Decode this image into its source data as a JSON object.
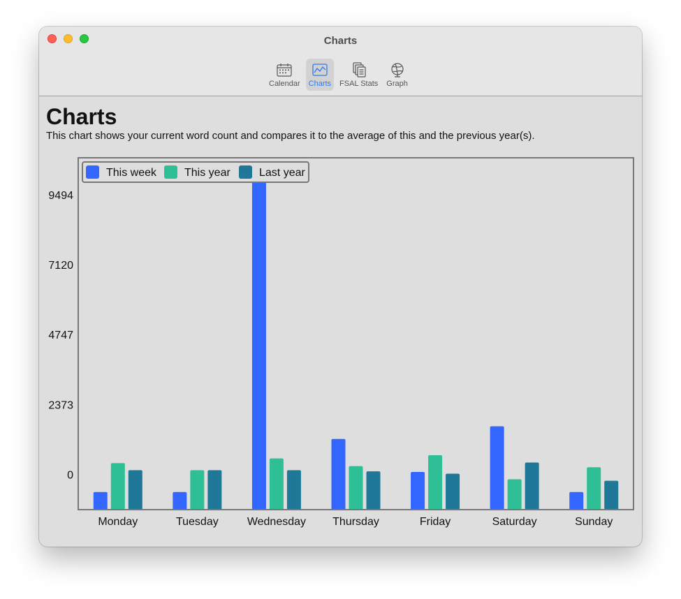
{
  "window": {
    "title": "Charts"
  },
  "toolbar": {
    "items": [
      {
        "label": "Calendar",
        "icon": "calendar-icon",
        "active": false
      },
      {
        "label": "Charts",
        "icon": "chart-icon",
        "active": true
      },
      {
        "label": "FSAL Stats",
        "icon": "documents-icon",
        "active": false
      },
      {
        "label": "Graph",
        "icon": "globe-icon",
        "active": false
      }
    ]
  },
  "page": {
    "title": "Charts",
    "description": "This chart shows your current word count and compares it to the average of this and the previous year(s)."
  },
  "chart_data": {
    "type": "bar",
    "categories": [
      "Monday",
      "Tuesday",
      "Wednesday",
      "Thursday",
      "Friday",
      "Saturday",
      "Sunday"
    ],
    "series": [
      {
        "name": "This week",
        "color": "#3366ff",
        "values": [
          -600,
          -600,
          10000,
          1200,
          80,
          1630,
          -600
        ]
      },
      {
        "name": "This year",
        "color": "#2ebf96",
        "values": [
          380,
          140,
          540,
          280,
          650,
          -170,
          240
        ]
      },
      {
        "name": "Last year",
        "color": "#1f7898",
        "values": [
          140,
          140,
          140,
          100,
          20,
          400,
          -220
        ]
      }
    ],
    "y_ticks": [
      "9494",
      "7120",
      "4747",
      "2373",
      "0"
    ],
    "y_tick_values": [
      9494,
      7120,
      4747,
      2373,
      0
    ],
    "ylim": [
      -1200,
      10750
    ],
    "legend": "top-left",
    "grid": false
  }
}
